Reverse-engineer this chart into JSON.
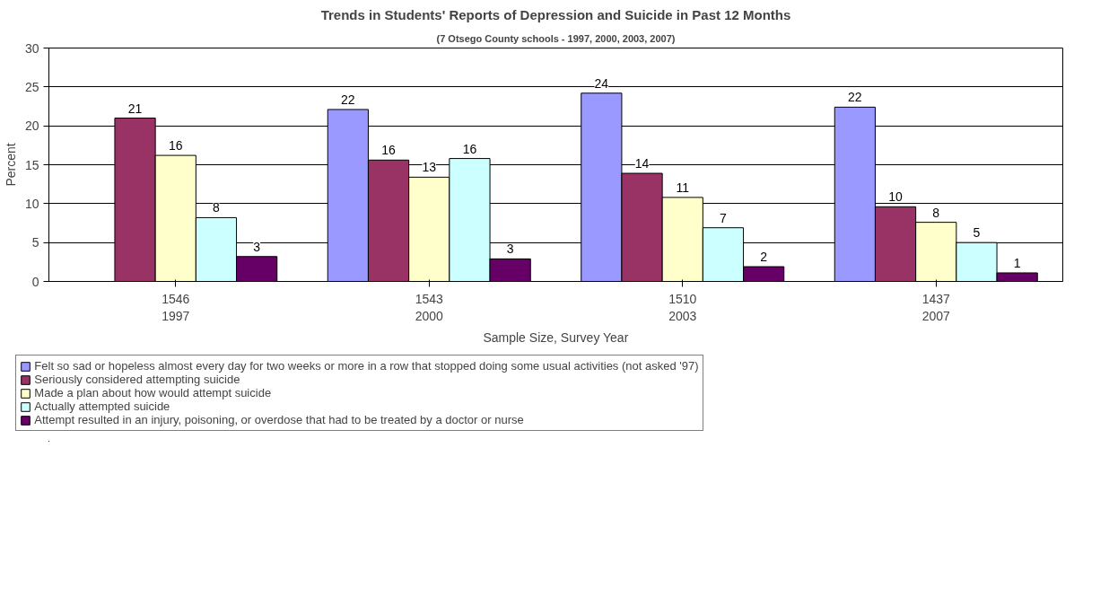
{
  "chart_data": {
    "type": "bar",
    "title": "Trends in Students' Reports of Depression and Suicide in Past 12 Months",
    "subtitle": "(7 Otsego County schools - 1997, 2000, 2003, 2007)",
    "xlabel": "Sample Size, Survey Year",
    "ylabel": "Percent",
    "categories": [
      "1546\n1997",
      "1543\n2000",
      "1510\n2003",
      "1437\n2007"
    ],
    "series": [
      {
        "name": "Felt so sad or hopeless almost every day for two weeks or more in a row that stopped doing some usual activities (not asked '97)",
        "color": "#9999ff",
        "values": [
          null,
          22.1,
          24.2,
          22.4
        ],
        "value_labels": [
          null,
          "22",
          "24",
          "22"
        ]
      },
      {
        "name": "Seriously considered attempting suicide",
        "color": "#993366",
        "values": [
          21.0,
          15.6,
          13.9,
          9.6
        ],
        "value_labels": [
          "21",
          "16",
          "14",
          "10"
        ]
      },
      {
        "name": "Made a plan about how would attempt suicide",
        "color": "#ffffcc",
        "values": [
          16.2,
          13.4,
          10.8,
          7.6
        ],
        "value_labels": [
          "16",
          "13",
          "11",
          "8"
        ]
      },
      {
        "name": "Actually attempted suicide",
        "color": "#ccffff",
        "values": [
          8.2,
          15.8,
          6.9,
          5.0
        ],
        "value_labels": [
          "8",
          "16",
          "7",
          "5"
        ]
      },
      {
        "name": "Attempt resulted in an injury, poisoning, or overdose that had to be treated by a doctor or nurse",
        "color": "#660066",
        "values": [
          3.2,
          2.9,
          1.9,
          1.1
        ],
        "value_labels": [
          "3",
          "3",
          "2",
          "1"
        ]
      }
    ],
    "ylim": [
      0,
      30
    ],
    "yticks": [
      0,
      5,
      10,
      15,
      20,
      25,
      30
    ],
    "grid": "y",
    "legend": "bottom"
  }
}
